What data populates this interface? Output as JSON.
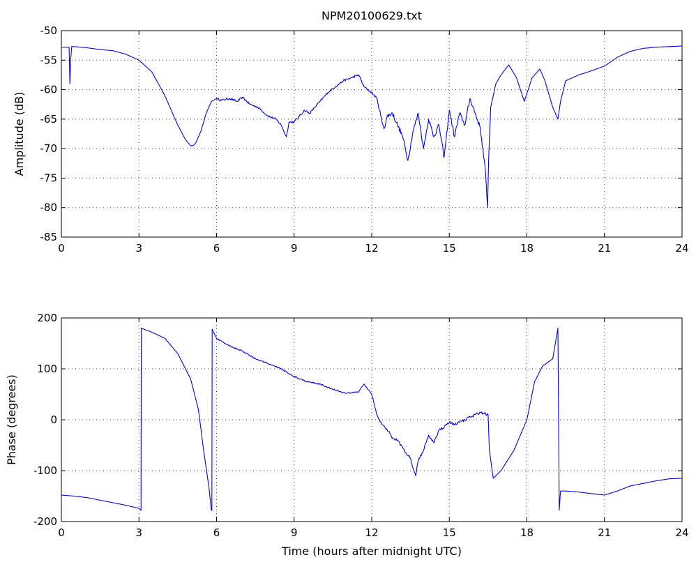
{
  "title": "NPM20100629.txt",
  "chart_data": [
    {
      "type": "line",
      "title": "NPM20100629.txt",
      "xlabel": "",
      "ylabel": "Amplitude (dB)",
      "xlim": [
        0,
        24
      ],
      "ylim": [
        -85,
        -50
      ],
      "xticks": [
        "0",
        "3",
        "6",
        "9",
        "12",
        "15",
        "18",
        "21",
        "24"
      ],
      "yticks": [
        "-50",
        "-55",
        "-60",
        "-65",
        "-70",
        "-75",
        "-80",
        "-85"
      ],
      "grid": true,
      "color": "#0000ff",
      "series": [
        {
          "x": [
            0,
            0.3,
            0.33,
            0.36,
            0.4,
            0.43,
            0.5,
            1.0,
            1.5,
            2.0,
            2.5,
            3.0,
            3.5,
            4.0,
            4.5,
            4.8,
            5.0,
            5.1,
            5.2,
            5.4,
            5.6,
            5.8,
            6.0,
            6.2,
            6.5,
            6.8,
            7.0,
            7.3,
            7.6,
            8.0,
            8.3,
            8.5,
            8.7,
            8.8,
            9.0,
            9.2,
            9.4,
            9.6,
            9.8,
            10.0,
            10.3,
            10.6,
            10.9,
            11.2,
            11.5,
            11.7,
            12.0,
            12.2,
            12.4,
            12.5,
            12.6,
            12.8,
            13.0,
            13.2,
            13.4,
            13.6,
            13.8,
            14.0,
            14.2,
            14.4,
            14.6,
            14.8,
            15.0,
            15.2,
            15.4,
            15.6,
            15.8,
            16.0,
            16.2,
            16.4,
            16.48,
            16.52,
            16.6,
            16.8,
            17.0,
            17.3,
            17.6,
            17.9,
            18.2,
            18.5,
            18.7,
            19.0,
            19.2,
            19.3,
            19.5,
            20.0,
            20.5,
            21.0,
            21.5,
            22.0,
            22.5,
            23.0,
            24.0
          ],
          "values": [
            -52.8,
            -52.8,
            -59.0,
            -55.0,
            -52.7,
            -52.7,
            -52.7,
            -52.9,
            -53.2,
            -53.4,
            -54.0,
            -55.0,
            -57.0,
            -61.0,
            -66.0,
            -68.5,
            -69.5,
            -69.5,
            -69.0,
            -67.0,
            -64.0,
            -62.0,
            -61.5,
            -61.8,
            -61.5,
            -62.0,
            -61.3,
            -62.5,
            -63.0,
            -64.5,
            -65.0,
            -66.0,
            -68.0,
            -65.5,
            -65.5,
            -64.5,
            -63.5,
            -64.0,
            -63.0,
            -62.0,
            -60.5,
            -59.5,
            -58.5,
            -58.0,
            -57.5,
            -59.5,
            -60.5,
            -61.5,
            -65.5,
            -66.5,
            -64.5,
            -64.0,
            -66.0,
            -68.0,
            -72.0,
            -67.0,
            -64.0,
            -70.0,
            -65.0,
            -68.0,
            -66.0,
            -71.5,
            -63.5,
            -68.0,
            -64.0,
            -66.0,
            -61.5,
            -64.0,
            -66.5,
            -74.0,
            -80.0,
            -72.0,
            -63.0,
            -59.0,
            -57.5,
            -55.8,
            -58.0,
            -62.0,
            -58.0,
            -56.5,
            -58.5,
            -63.0,
            -65.0,
            -62.0,
            -58.5,
            -57.5,
            -56.8,
            -56.0,
            -54.5,
            -53.5,
            -53.0,
            -52.8,
            -52.6
          ]
        }
      ]
    },
    {
      "type": "line",
      "title": "",
      "xlabel": "Time (hours after midnight UTC)",
      "ylabel": "Phase (degrees)",
      "xlim": [
        0,
        24
      ],
      "ylim": [
        -200,
        200
      ],
      "xticks": [
        "0",
        "3",
        "6",
        "9",
        "12",
        "15",
        "18",
        "21",
        "24"
      ],
      "yticks": [
        "200",
        "100",
        "0",
        "-100",
        "-200"
      ],
      "grid": true,
      "color": "#0000ff",
      "series": [
        {
          "x": [
            0,
            0.5,
            1.0,
            1.5,
            2.0,
            2.5,
            3.0,
            3.08,
            3.09,
            3.5,
            4.0,
            4.5,
            5.0,
            5.3,
            5.5,
            5.7,
            5.8,
            5.82,
            5.83,
            6.0,
            6.5,
            7.0,
            7.5,
            8.0,
            8.5,
            9.0,
            9.5,
            10.0,
            10.5,
            11.0,
            11.5,
            11.7,
            12.0,
            12.2,
            12.4,
            12.6,
            12.8,
            13.0,
            13.2,
            13.4,
            13.5,
            13.6,
            13.7,
            13.8,
            14.0,
            14.2,
            14.4,
            14.6,
            14.8,
            15.0,
            15.2,
            15.4,
            15.6,
            15.8,
            16.0,
            16.2,
            16.5,
            16.55,
            16.7,
            17.0,
            17.5,
            18.0,
            18.3,
            18.6,
            19.0,
            19.2,
            19.25,
            19.3,
            19.5,
            20.0,
            20.5,
            21.0,
            21.5,
            22.0,
            22.5,
            23.0,
            23.5,
            24.0
          ],
          "values": [
            -148,
            -150,
            -153,
            -158,
            -163,
            -168,
            -174,
            -178,
            180,
            172,
            160,
            130,
            80,
            20,
            -60,
            -130,
            -178,
            -178,
            178,
            160,
            145,
            135,
            120,
            110,
            100,
            85,
            75,
            70,
            60,
            52,
            55,
            70,
            50,
            10,
            -10,
            -20,
            -35,
            -40,
            -55,
            -70,
            -75,
            -95,
            -110,
            -80,
            -60,
            -30,
            -45,
            -20,
            -15,
            -5,
            -10,
            -5,
            0,
            5,
            10,
            15,
            10,
            -60,
            -115,
            -100,
            -60,
            0,
            75,
            105,
            120,
            180,
            -178,
            -140,
            -140,
            -142,
            -145,
            -148,
            -140,
            -130,
            -125,
            -120,
            -116,
            -115
          ]
        }
      ]
    }
  ]
}
